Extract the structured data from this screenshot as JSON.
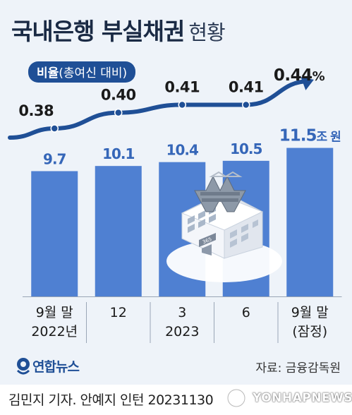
{
  "title": {
    "main": "국내은행 부실채권",
    "sub": "현황"
  },
  "rate_label": {
    "bold": "비율",
    "rest": "(총여신 대비)"
  },
  "chart_data": {
    "type": "bar",
    "categories": [
      {
        "line1": "9월 말",
        "line2": "2022년"
      },
      {
        "line1": "12",
        "line2": ""
      },
      {
        "line1": "3",
        "line2": "2023"
      },
      {
        "line1": "6",
        "line2": ""
      },
      {
        "line1": "9월 말",
        "line2": "(잠정)"
      }
    ],
    "series": [
      {
        "values": [
          9.7,
          10.1,
          10.4,
          10.5,
          11.5
        ],
        "labels": [
          "9.7",
          "10.1",
          "10.4",
          "10.5",
          "11.5"
        ],
        "last_label_unit": "조 원",
        "type": "bar",
        "color": "#4f80d2"
      },
      {
        "values": [
          0.38,
          0.4,
          0.41,
          0.41,
          0.44
        ],
        "labels": [
          "0.38",
          "0.40",
          "0.41",
          "0.41",
          "0.44"
        ],
        "last_label_unit": "%",
        "type": "line",
        "color": "#1f4f96"
      }
    ]
  },
  "footer": {
    "logo_text": "연합뉴스",
    "source": "자료: 금융감독원",
    "credit": "김민지 기자. 안예지 인턴  20231130",
    "watermark": "YONHAPNEWS"
  },
  "icons": [
    "bank-building-icon",
    "won-sign-icon",
    "yonhap-logo-icon"
  ],
  "building_sign": "365"
}
